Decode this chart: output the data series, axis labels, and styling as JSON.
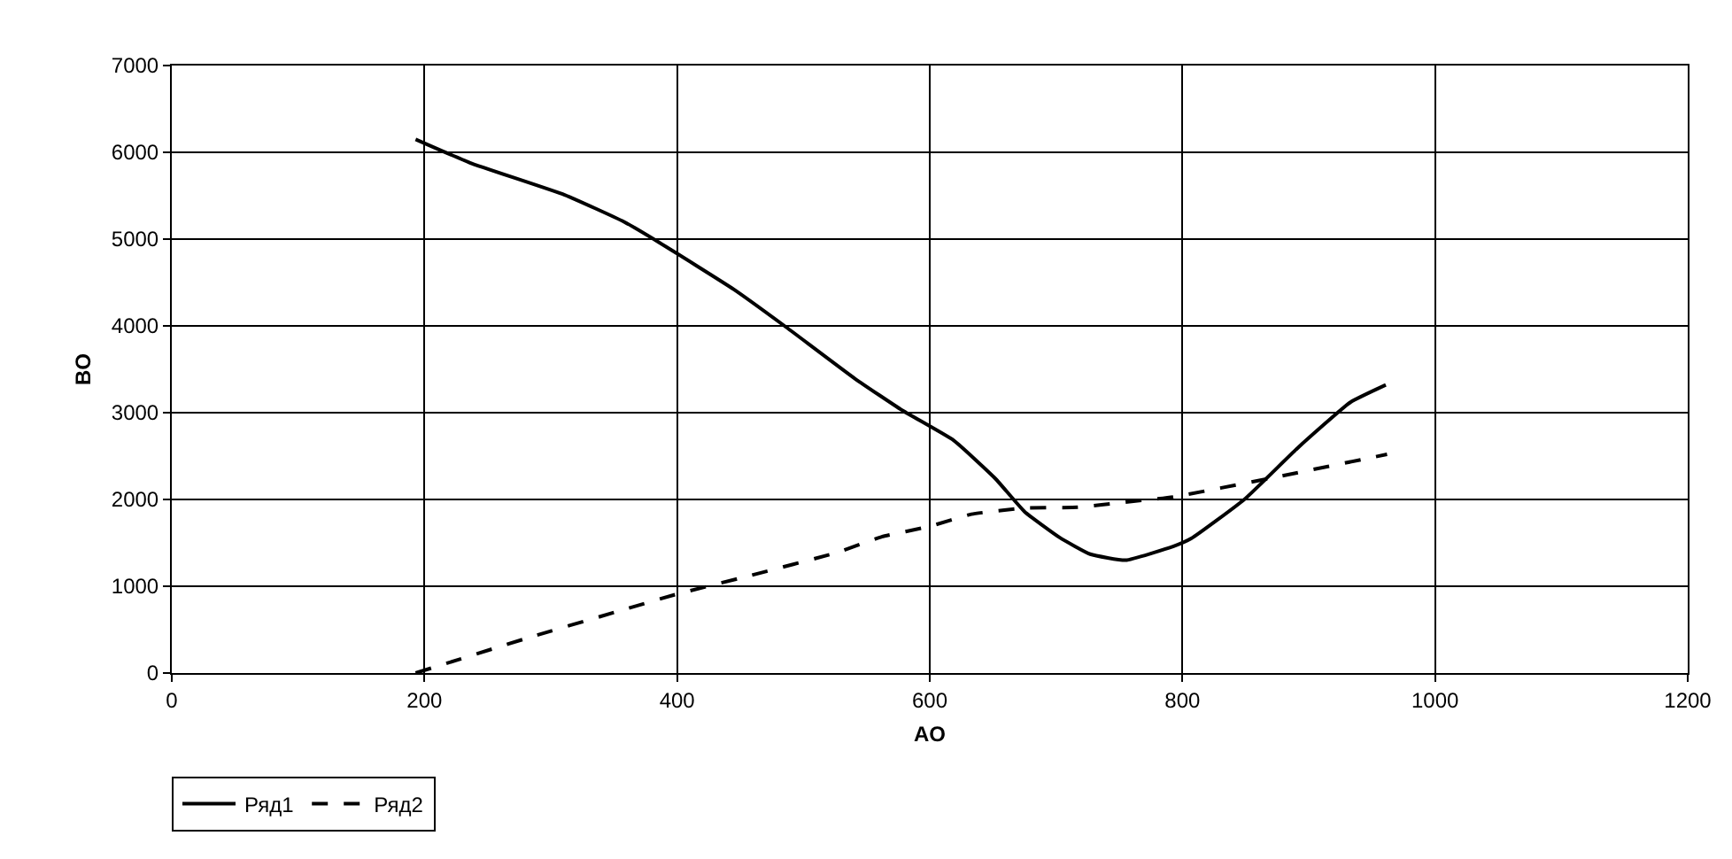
{
  "chart_data": {
    "type": "line",
    "xlabel": "AO",
    "ylabel": "BO",
    "xlim": [
      0,
      1200
    ],
    "xticks": [
      0,
      200,
      400,
      600,
      800,
      1000,
      1200
    ],
    "ylim": [
      0,
      7000
    ],
    "yticks": [
      0,
      1000,
      2000,
      3000,
      4000,
      5000,
      6000,
      7000
    ],
    "grid": true,
    "legend": "bottom left",
    "marker": "none",
    "series": [
      {
        "name": "Ряд1",
        "color": "#000000",
        "line_style": "solid",
        "x": [
          193,
          236,
          311,
          358,
          386,
          445,
          485,
          541,
          579,
          619,
          652,
          675,
          703,
          727,
          755,
          793,
          807,
          849,
          891,
          933,
          961
        ],
        "values": [
          6150,
          5880,
          5510,
          5200,
          4960,
          4420,
          4000,
          3390,
          3020,
          2680,
          2240,
          1860,
          1560,
          1370,
          1300,
          1460,
          1550,
          2000,
          2590,
          3120,
          3320
        ]
      },
      {
        "name": "Ряд2",
        "color": "#000000",
        "line_style": "dashed",
        "x": [
          193,
          283,
          353,
          400,
          457,
          527,
          562,
          600,
          633,
          675,
          717,
          755,
          793,
          868,
          962
        ],
        "values": [
          0,
          410,
          710,
          910,
          1120,
          1390,
          1570,
          1690,
          1830,
          1900,
          1910,
          1970,
          2030,
          2240,
          2520
        ]
      }
    ]
  }
}
